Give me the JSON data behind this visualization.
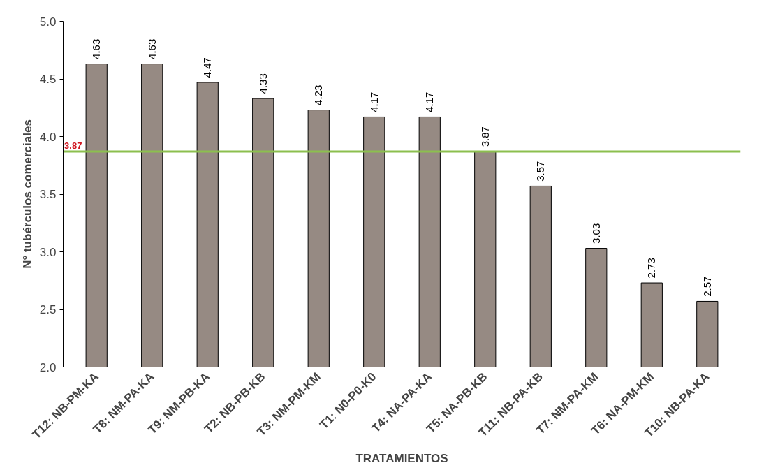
{
  "chart_data": {
    "type": "bar",
    "xlabel": "TRATAMIENTOS",
    "ylabel": "N° tubérculos comerciales",
    "categories": [
      "T12: NB-PM-KA",
      "T8: NM-PA-KA",
      "T9: NM-PB-KA",
      "T2: NB-PB-KB",
      "T3: NM-PM-KM",
      "T1: N0-P0-K0",
      "T4: NA-PA-KA",
      "T5: NA-PB-KB",
      "T11: NB-PA-KB",
      "T7: NM-PA-KM",
      "T6: NA-PM-KM",
      "T10: NB-PA-KA"
    ],
    "values": [
      4.63,
      4.63,
      4.47,
      4.33,
      4.23,
      4.17,
      4.17,
      3.87,
      3.57,
      3.03,
      2.73,
      2.57
    ],
    "color": "#968a83",
    "ylim": [
      2.0,
      5.0
    ],
    "yticks": [
      {
        "value": 2.0,
        "label": "2.0"
      },
      {
        "value": 2.5,
        "label": "2.5"
      },
      {
        "value": 3.0,
        "label": "3.0"
      },
      {
        "value": 3.5,
        "label": "3.5"
      },
      {
        "value": 4.0,
        "label": "4.0"
      },
      {
        "value": 4.5,
        "label": "4.5"
      },
      {
        "value": 5.0,
        "label": "5.0"
      }
    ],
    "data_labels": true,
    "grid": false,
    "ref_lines": [
      {
        "axis": "y",
        "value": 3.87,
        "label": "3.87",
        "color": "#8cbf4f"
      }
    ]
  }
}
